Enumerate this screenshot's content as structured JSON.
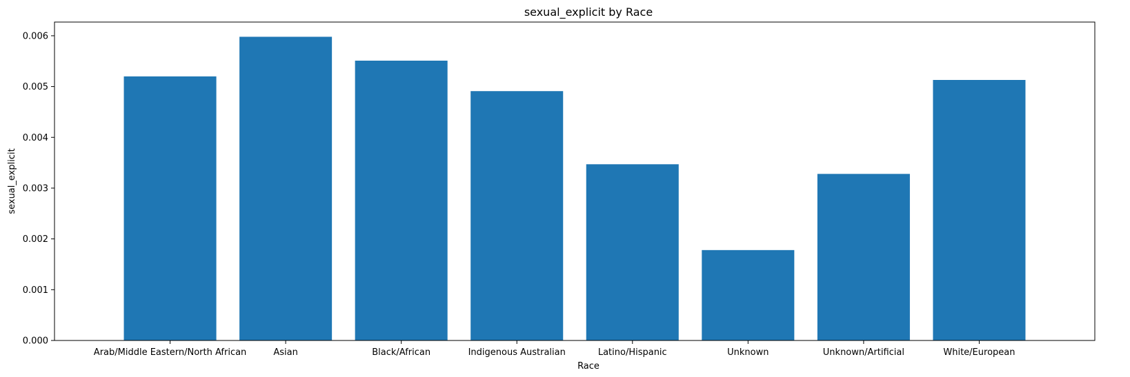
{
  "chart_data": {
    "type": "bar",
    "title": "sexual_explicit by Race",
    "xlabel": "Race",
    "ylabel": "sexual_explicit",
    "categories": [
      "Arab/Middle Eastern/North African",
      "Asian",
      "Black/African",
      "Indigenous Australian",
      "Latino/Hispanic",
      "Unknown",
      "Unknown/Artificial",
      "White/European"
    ],
    "values": [
      0.0052,
      0.00598,
      0.00551,
      0.00491,
      0.00347,
      0.00178,
      0.00328,
      0.00513
    ],
    "ylim": [
      0,
      0.00627
    ],
    "yticks": [
      "0.000",
      "0.001",
      "0.002",
      "0.003",
      "0.004",
      "0.005",
      "0.006"
    ],
    "bar_color": "#1f77b4",
    "grid": false,
    "legend": "none"
  }
}
